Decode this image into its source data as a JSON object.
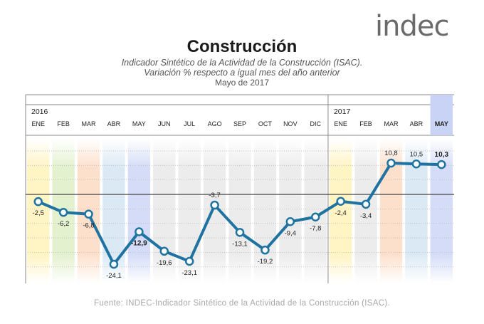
{
  "logo": {
    "text": "indec",
    "color": "#6a6a6a",
    "accent": "#e6007e"
  },
  "header": {
    "title": "Construcción",
    "subtitle_1": "Indicador Sintético de la Actividad de la Construcción (ISAC).",
    "subtitle_2": "Variación % respecto a igual mes del año anterior",
    "date": "Mayo de 2017"
  },
  "source": "Fuente: INDEC-Indicador Sintético de la Actividad de la Construcción (ISAC).",
  "chart_data": {
    "type": "line",
    "years": [
      {
        "label": "2016",
        "start_index": 0
      },
      {
        "label": "2017",
        "start_index": 12
      }
    ],
    "categories": [
      "ENE",
      "FEB",
      "MAR",
      "ABR",
      "MAY",
      "JUN",
      "JUL",
      "AGO",
      "SEP",
      "OCT",
      "NOV",
      "DIC",
      "ENE",
      "FEB",
      "MAR",
      "ABR",
      "MAY"
    ],
    "series": [
      {
        "values": [
          -2.5,
          -6.2,
          -6.8,
          -24.1,
          -12.9,
          -19.6,
          -23.1,
          -3.7,
          -13.1,
          -19.2,
          -9.4,
          -7.8,
          -2.4,
          -3.4,
          10.8,
          10.5,
          10.3
        ],
        "labels": [
          "-2,5",
          "-6,2",
          "-6,8",
          "-24,1",
          "-12,9",
          "-19,6",
          "-23,1",
          "-3,7",
          "-13,1",
          "-19,2",
          "-9,4",
          "-7,8",
          "-2,4",
          "-3,4",
          "10,8",
          "10,5",
          "10,3"
        ],
        "color": "#1e73a0"
      }
    ],
    "ylim": [
      -28,
      17
    ],
    "highlighted_indices": [
      4,
      16
    ],
    "column_colors": {
      "ENE": "#fff4c4",
      "FEB": "#e4f1cf",
      "MAR": "#fde0cc",
      "ABR": "#dbe9f5",
      "MAY": "#d4dcf7",
      "other": "#ececec"
    },
    "grid": true
  }
}
